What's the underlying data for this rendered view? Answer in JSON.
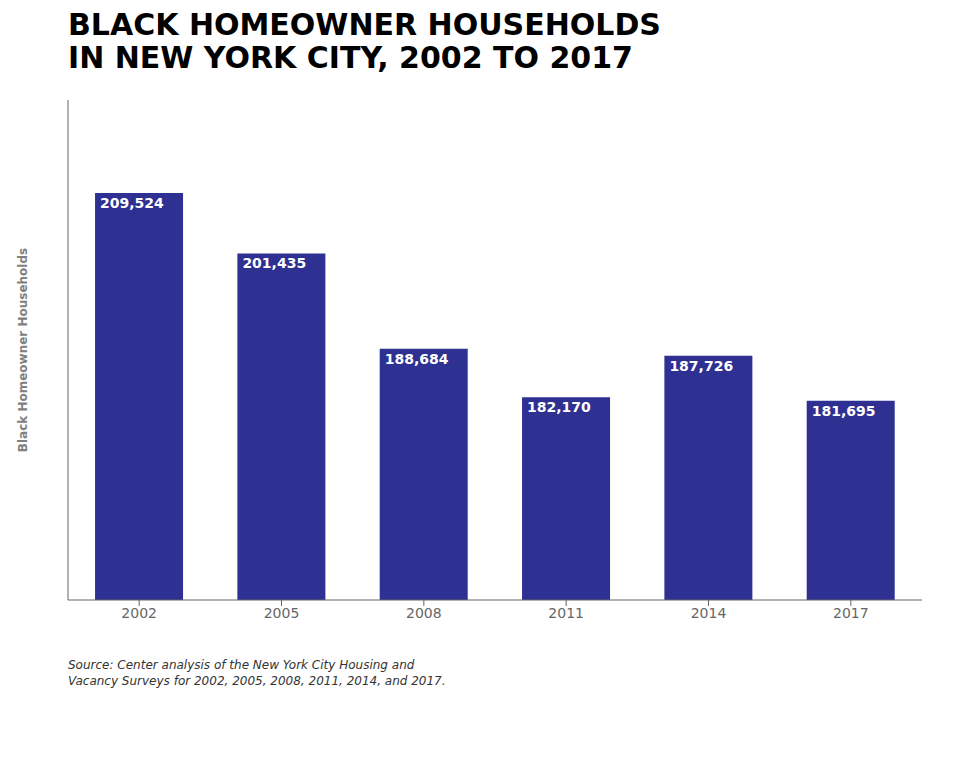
{
  "chart_data": {
    "type": "bar",
    "title": "BLACK HOMEOWNER HOUSEHOLDS\nIN NEW YORK CITY, 2002 TO 2017",
    "ylabel": "Black Homeowner Households",
    "categories": [
      "2002",
      "2005",
      "2008",
      "2011",
      "2014",
      "2017"
    ],
    "values": [
      209524,
      201435,
      188684,
      182170,
      187726,
      181695
    ],
    "value_labels": [
      "209,524",
      "201,435",
      "188,684",
      "182,170",
      "187,726",
      "181,695"
    ],
    "data_labels": true,
    "color": "#2E3192",
    "ylim": [
      155000,
      222000
    ],
    "yticks": [
      155000,
      166166.66666666666,
      177333.33333333334,
      188500,
      199666.66666666666,
      210833.33333333334,
      222000
    ],
    "grid": true,
    "tick_labels": "x",
    "annotations": [
      "Source: Center analysis of the New York City Housing and\nVacancy Surveys for 2002, 2005, 2008, 2011, 2014, and 2017."
    ]
  }
}
